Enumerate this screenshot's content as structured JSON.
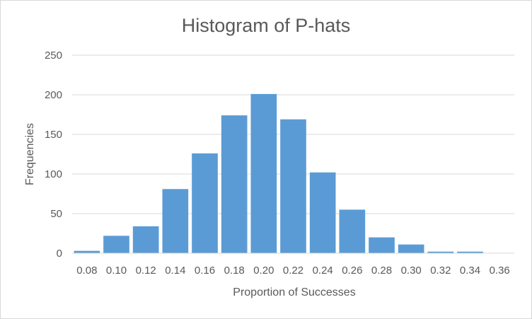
{
  "chart_data": {
    "type": "bar",
    "title": "Histogram of P-hats",
    "xlabel": "Proportion of Successes",
    "ylabel": "Frequencies",
    "categories": [
      "0.08",
      "0.10",
      "0.12",
      "0.14",
      "0.16",
      "0.18",
      "0.20",
      "0.22",
      "0.24",
      "0.26",
      "0.28",
      "0.30",
      "0.32",
      "0.34",
      "0.36"
    ],
    "values": [
      3,
      22,
      34,
      81,
      126,
      174,
      201,
      169,
      102,
      55,
      20,
      11,
      2,
      2,
      0
    ],
    "yticks": [
      "0",
      "50",
      "100",
      "150",
      "200",
      "250"
    ],
    "ylim": [
      0,
      250
    ],
    "grid": true,
    "legend": "none",
    "bar_color": "#5B9BD5"
  }
}
